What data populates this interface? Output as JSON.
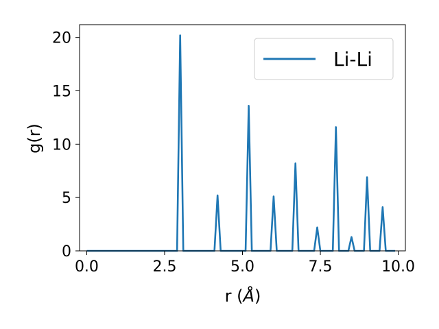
{
  "chart_data": {
    "type": "line",
    "xlabel_main": "r (",
    "xlabel_unit": "Å",
    "xlabel_close": ")",
    "ylabel": "g(r)",
    "xlim": [
      -0.23,
      10.23
    ],
    "ylim": [
      0,
      21.2
    ],
    "xticks": [
      0.0,
      2.5,
      5.0,
      7.5,
      10.0
    ],
    "xtick_labels": [
      "0.0",
      "2.5",
      "5.0",
      "7.5",
      "10.0"
    ],
    "yticks": [
      0,
      5,
      10,
      15,
      20
    ],
    "ytick_labels": [
      "0",
      "5",
      "10",
      "15",
      "20"
    ],
    "grid": false,
    "legend_position": "top-right",
    "series": [
      {
        "name": "Li-Li",
        "color": "#1f77b4",
        "x": [
          0.0,
          2.9,
          3.0,
          3.1,
          4.1,
          4.2,
          4.3,
          5.1,
          5.2,
          5.3,
          5.9,
          6.0,
          6.1,
          6.6,
          6.7,
          6.8,
          7.3,
          7.4,
          7.5,
          7.9,
          8.0,
          8.1,
          8.4,
          8.5,
          8.6,
          8.9,
          9.0,
          9.1,
          9.4,
          9.5,
          9.6,
          9.9
        ],
        "y": [
          0.0,
          0.0,
          20.2,
          0.0,
          0.0,
          5.2,
          0.0,
          0.0,
          13.6,
          0.0,
          0.0,
          5.1,
          0.0,
          0.0,
          8.2,
          0.0,
          0.0,
          2.2,
          0.0,
          0.0,
          11.6,
          0.0,
          0.0,
          1.3,
          0.0,
          0.0,
          6.9,
          0.0,
          0.0,
          4.1,
          0.0,
          0.0
        ]
      }
    ]
  }
}
